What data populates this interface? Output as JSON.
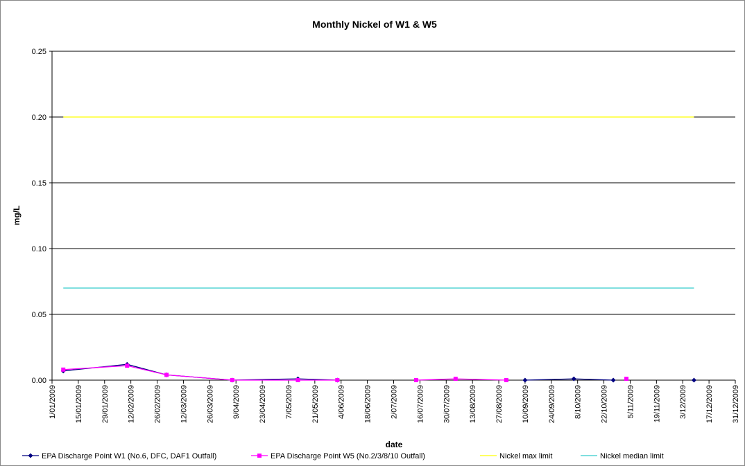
{
  "chart_data": {
    "type": "line",
    "title": "Monthly Nickel of W1 & W5",
    "x_label": "date",
    "y_label": "mg/L",
    "xlim": [
      "2009-01-01",
      "2009-12-31"
    ],
    "xticks": [
      {
        "value": "2009-01-01",
        "label": "1/01/2009"
      },
      {
        "value": "2009-01-15",
        "label": "15/01/2009"
      },
      {
        "value": "2009-01-29",
        "label": "29/01/2009"
      },
      {
        "value": "2009-02-12",
        "label": "12/02/2009"
      },
      {
        "value": "2009-02-26",
        "label": "26/02/2009"
      },
      {
        "value": "2009-03-12",
        "label": "12/03/2009"
      },
      {
        "value": "2009-03-26",
        "label": "26/03/2009"
      },
      {
        "value": "2009-04-09",
        "label": "9/04/2009"
      },
      {
        "value": "2009-04-23",
        "label": "23/04/2009"
      },
      {
        "value": "2009-05-07",
        "label": "7/05/2009"
      },
      {
        "value": "2009-05-21",
        "label": "21/05/2009"
      },
      {
        "value": "2009-06-04",
        "label": "4/06/2009"
      },
      {
        "value": "2009-06-18",
        "label": "18/06/2009"
      },
      {
        "value": "2009-07-02",
        "label": "2/07/2009"
      },
      {
        "value": "2009-07-16",
        "label": "16/07/2009"
      },
      {
        "value": "2009-07-30",
        "label": "30/07/2009"
      },
      {
        "value": "2009-08-13",
        "label": "13/08/2009"
      },
      {
        "value": "2009-08-27",
        "label": "27/08/2009"
      },
      {
        "value": "2009-09-10",
        "label": "10/09/2009"
      },
      {
        "value": "2009-09-24",
        "label": "24/09/2009"
      },
      {
        "value": "2009-10-08",
        "label": "8/10/2009"
      },
      {
        "value": "2009-10-22",
        "label": "22/10/2009"
      },
      {
        "value": "2009-11-05",
        "label": "5/11/2009"
      },
      {
        "value": "2009-11-19",
        "label": "19/11/2009"
      },
      {
        "value": "2009-12-03",
        "label": "3/12/2009"
      },
      {
        "value": "2009-12-17",
        "label": "17/12/2009"
      },
      {
        "value": "2009-12-31",
        "label": "31/12/2009"
      }
    ],
    "ylim": [
      0,
      0.25
    ],
    "yticks": [
      {
        "value": 0,
        "label": "0.00"
      },
      0.05,
      {
        "value": 0.1,
        "label": "0.10"
      },
      0.15,
      {
        "value": 0.2,
        "label": "0.20"
      },
      0.25
    ],
    "grid": true,
    "legend": "bottom",
    "series": [
      {
        "name": "EPA Discharge Point W1 (No.6, DFC, DAF1 Outfall)",
        "color": "#000080",
        "marker": "diamond",
        "x": [
          "2009-01-07",
          "2009-02-10",
          "2009-03-03",
          "2009-04-07",
          "2009-05-12",
          "2009-06-02",
          "2009-06-23",
          "2009-09-10",
          "2009-10-06",
          "2009-10-27",
          "2009-11-17",
          "2009-12-09"
        ],
        "values": [
          0.007,
          0.012,
          0.004,
          0,
          0.001,
          0,
          null,
          0,
          0.001,
          0,
          null,
          0
        ]
      },
      {
        "name": "EPA Discharge Point W5 (No.2/3/8/10 Outfall)",
        "color": "#ff00ff",
        "marker": "square",
        "x": [
          "2009-01-07",
          "2009-02-10",
          "2009-03-03",
          "2009-04-07",
          "2009-05-12",
          "2009-06-02",
          "2009-06-23",
          "2009-07-14",
          "2009-08-04",
          "2009-08-31",
          "2009-10-08",
          "2009-11-03"
        ],
        "values": [
          0.008,
          0.011,
          0.004,
          0,
          0,
          0,
          null,
          0,
          0.001,
          0,
          null,
          0.001
        ]
      },
      {
        "name": "Nickel max limit",
        "color": "#ffff00",
        "marker": "none",
        "x": [
          "2009-01-07",
          "2009-12-09"
        ],
        "values": [
          0.2,
          0.2
        ]
      },
      {
        "name": "Nickel median limit",
        "color": "#33cccc",
        "marker": "none",
        "x": [
          "2009-01-07",
          "2009-12-09"
        ],
        "values": [
          0.07,
          0.07
        ]
      }
    ]
  }
}
